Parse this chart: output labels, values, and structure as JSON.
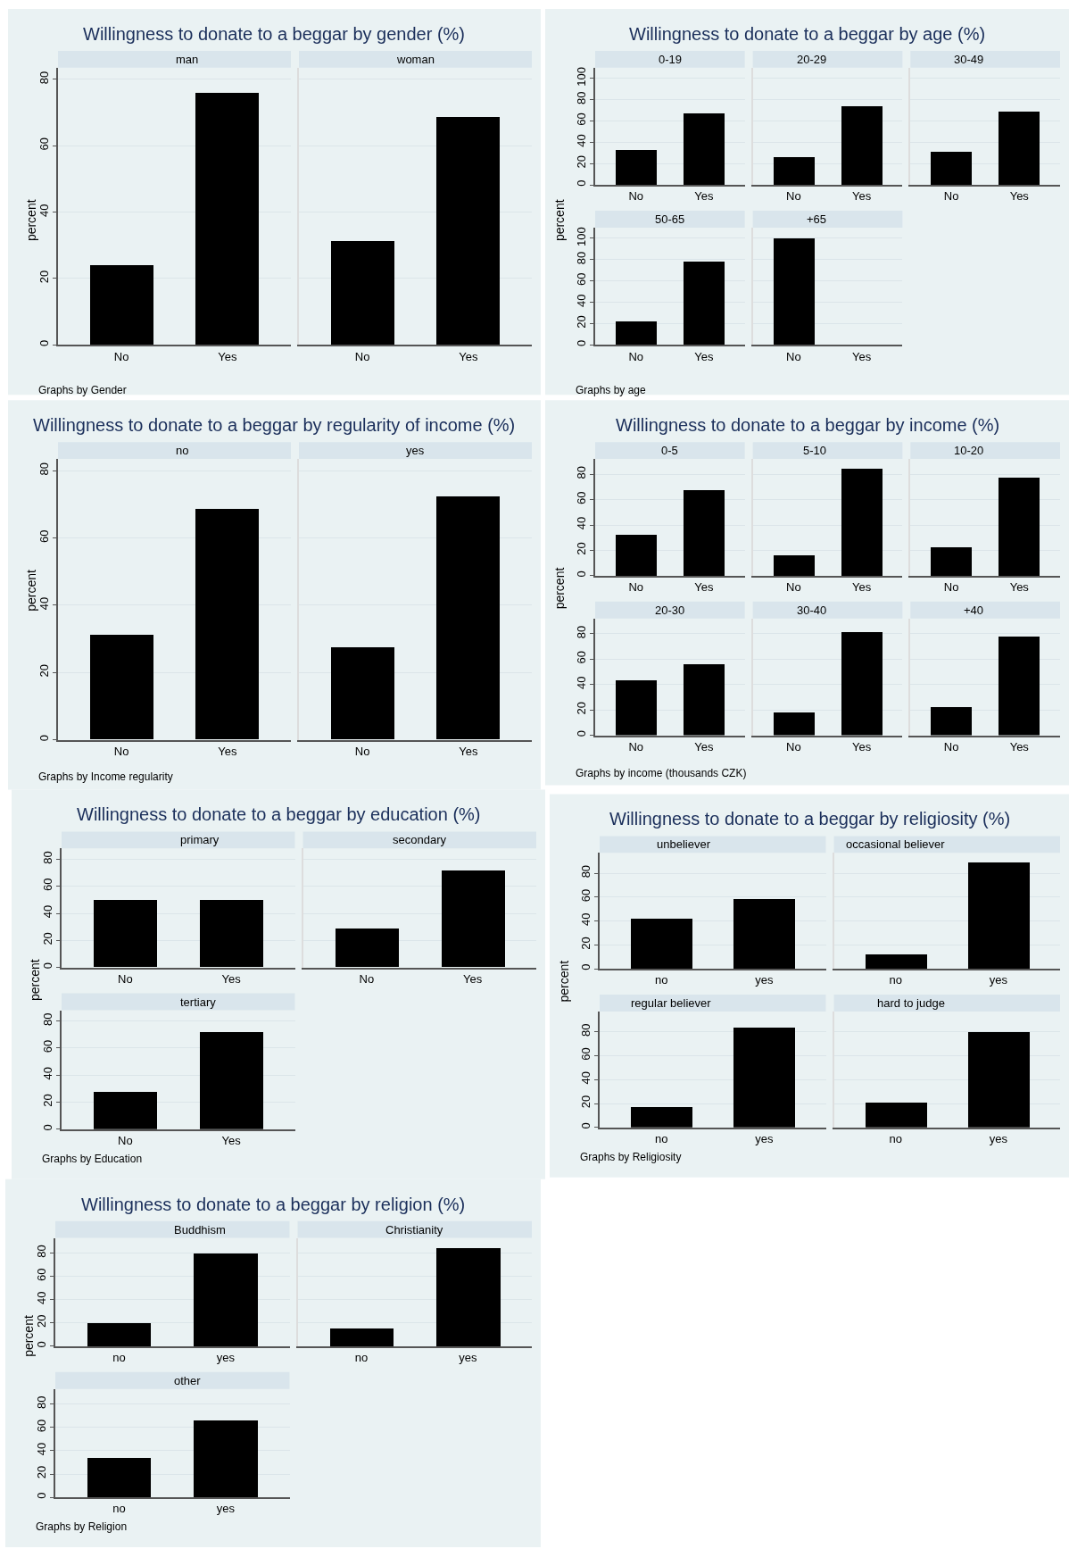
{
  "chart_data": [
    {
      "type": "bar",
      "title": "Willingness to donate to a beggar by gender (%)",
      "subtitle": "man",
      "ylabel": "percent",
      "annotations": [
        "Graphs by Gender"
      ],
      "categories": [
        "No",
        "Yes"
      ],
      "values": [
        24,
        76
      ],
      "color": "#000000",
      "ylim": [
        0,
        83.5
      ],
      "yticks": [
        0,
        20,
        40,
        60,
        80
      ],
      "grid": "y"
    },
    {
      "type": "bar",
      "subtitle": "woman",
      "categories": [
        "No",
        "Yes"
      ],
      "values": [
        31.3,
        68.7
      ],
      "color": "#000000",
      "ylim": [
        0,
        83.5
      ],
      "yticks": [
        0,
        20,
        40,
        60,
        80
      ],
      "grid": "y",
      "tick_labels": "x"
    },
    {
      "type": "bar",
      "title": "Willingness to donate to a beggar by age (%)",
      "subtitle": "0-19",
      "ylabel": "percent",
      "annotations": [
        "Graphs by age"
      ],
      "categories": [
        "No",
        "Yes"
      ],
      "values": [
        33,
        67
      ],
      "color": "#000000",
      "ylim": [
        0,
        110
      ],
      "yticks": [
        0,
        20,
        40,
        60,
        80,
        100
      ],
      "grid": "y"
    },
    {
      "type": "bar",
      "subtitle": "20-29",
      "categories": [
        "No",
        "Yes"
      ],
      "values": [
        26,
        74
      ],
      "color": "#000000",
      "ylim": [
        0,
        110
      ],
      "yticks": [
        0,
        20,
        40,
        60,
        80,
        100
      ],
      "grid": "y",
      "tick_labels": "x"
    },
    {
      "type": "bar",
      "subtitle": "30-49",
      "categories": [
        "No",
        "Yes"
      ],
      "values": [
        31,
        69
      ],
      "color": "#000000",
      "ylim": [
        0,
        110
      ],
      "yticks": [
        0,
        20,
        40,
        60,
        80,
        100
      ],
      "grid": "y",
      "tick_labels": "x"
    },
    {
      "type": "bar",
      "subtitle": "50-65",
      "categories": [
        "No",
        "Yes"
      ],
      "values": [
        22,
        78
      ],
      "color": "#000000",
      "ylim": [
        0,
        110
      ],
      "yticks": [
        0,
        20,
        40,
        60,
        80,
        100
      ],
      "grid": "y"
    },
    {
      "type": "bar",
      "subtitle": "+65",
      "categories": [
        "No",
        "Yes"
      ],
      "values": [
        100,
        0
      ],
      "color": "#000000",
      "ylim": [
        0,
        110
      ],
      "yticks": [
        0,
        20,
        40,
        60,
        80,
        100
      ],
      "grid": "y",
      "tick_labels": "x"
    },
    {
      "type": "bar",
      "title": "Willingness to donate to a beggar by regularity of income (%)",
      "subtitle": "no",
      "ylabel": "percent",
      "annotations": [
        "Graphs by Income regularity"
      ],
      "categories": [
        "No",
        "Yes"
      ],
      "values": [
        31.3,
        68.7
      ],
      "color": "#000000",
      "ylim": [
        0,
        83.5
      ],
      "yticks": [
        0,
        20,
        40,
        60,
        80
      ],
      "grid": "y"
    },
    {
      "type": "bar",
      "subtitle": "yes",
      "categories": [
        "No",
        "Yes"
      ],
      "values": [
        27.6,
        72.4
      ],
      "color": "#000000",
      "ylim": [
        0,
        83.5
      ],
      "yticks": [
        0,
        20,
        40,
        60,
        80
      ],
      "grid": "y",
      "tick_labels": "x"
    },
    {
      "type": "bar",
      "title": "Willingness to donate to a beggar by income (%)",
      "subtitle": "0-5",
      "ylabel": "percent",
      "annotations": [
        "Graphs by income (thousands CZK)"
      ],
      "categories": [
        "No",
        "Yes"
      ],
      "values": [
        32.3,
        67.7
      ],
      "color": "#000000",
      "ylim": [
        0,
        92
      ],
      "yticks": [
        0,
        20,
        40,
        60,
        80
      ],
      "grid": "y"
    },
    {
      "type": "bar",
      "subtitle": "5-10",
      "categories": [
        "No",
        "Yes"
      ],
      "values": [
        16,
        84
      ],
      "color": "#000000",
      "ylim": [
        0,
        92
      ],
      "yticks": [
        0,
        20,
        40,
        60,
        80
      ],
      "grid": "y",
      "tick_labels": "x"
    },
    {
      "type": "bar",
      "subtitle": "10-20",
      "categories": [
        "No",
        "Yes"
      ],
      "values": [
        22.6,
        77.4
      ],
      "color": "#000000",
      "ylim": [
        0,
        92
      ],
      "yticks": [
        0,
        20,
        40,
        60,
        80
      ],
      "grid": "y",
      "tick_labels": "x"
    },
    {
      "type": "bar",
      "subtitle": "20-30",
      "categories": [
        "No",
        "Yes"
      ],
      "values": [
        43.8,
        56.2
      ],
      "color": "#000000",
      "ylim": [
        0,
        92
      ],
      "yticks": [
        0,
        20,
        40,
        60,
        80
      ],
      "grid": "y"
    },
    {
      "type": "bar",
      "subtitle": "30-40",
      "categories": [
        "No",
        "Yes"
      ],
      "values": [
        18.2,
        81.8
      ],
      "color": "#000000",
      "ylim": [
        0,
        92
      ],
      "yticks": [
        0,
        20,
        40,
        60,
        80
      ],
      "grid": "y",
      "tick_labels": "x"
    },
    {
      "type": "bar",
      "subtitle": "+40",
      "categories": [
        "No",
        "Yes"
      ],
      "values": [
        22.4,
        77.6
      ],
      "color": "#000000",
      "ylim": [
        0,
        92
      ],
      "yticks": [
        0,
        20,
        40,
        60,
        80
      ],
      "grid": "y",
      "tick_labels": "x"
    },
    {
      "type": "bar",
      "title": "Willingness to donate to a beggar by education (%)",
      "subtitle": "primary",
      "ylabel": "percent",
      "annotations": [
        "Graphs by Education"
      ],
      "categories": [
        "No",
        "Yes"
      ],
      "values": [
        50,
        50
      ],
      "color": "#000000",
      "ylim": [
        0,
        88
      ],
      "yticks": [
        0,
        20,
        40,
        60,
        80
      ],
      "grid": "y"
    },
    {
      "type": "bar",
      "subtitle": "secondary",
      "categories": [
        "No",
        "Yes"
      ],
      "values": [
        28.8,
        71.2
      ],
      "color": "#000000",
      "ylim": [
        0,
        88
      ],
      "yticks": [
        0,
        20,
        40,
        60,
        80
      ],
      "grid": "y",
      "tick_labels": "x"
    },
    {
      "type": "bar",
      "subtitle": "tertiary",
      "categories": [
        "No",
        "Yes"
      ],
      "values": [
        27.8,
        72.2
      ],
      "color": "#000000",
      "ylim": [
        0,
        88
      ],
      "yticks": [
        0,
        20,
        40,
        60,
        80
      ],
      "grid": "y"
    },
    {
      "type": "bar",
      "title": "Willingness to donate to a beggar by religiosity (%)",
      "subtitle": "unbeliever",
      "ylabel": "percent",
      "annotations": [
        "Graphs by Religiosity"
      ],
      "categories": [
        "no",
        "yes"
      ],
      "values": [
        42,
        58
      ],
      "color": "#000000",
      "ylim": [
        0,
        97
      ],
      "yticks": [
        0,
        20,
        40,
        60,
        80
      ],
      "grid": "y"
    },
    {
      "type": "bar",
      "subtitle": "occasional believer",
      "categories": [
        "no",
        "yes"
      ],
      "values": [
        11.5,
        88.5
      ],
      "color": "#000000",
      "ylim": [
        0,
        97
      ],
      "yticks": [
        0,
        20,
        40,
        60,
        80
      ],
      "grid": "y",
      "tick_labels": "x"
    },
    {
      "type": "bar",
      "subtitle": "regular believer",
      "categories": [
        "no",
        "yes"
      ],
      "values": [
        17,
        83.5
      ],
      "color": "#000000",
      "ylim": [
        0,
        97
      ],
      "yticks": [
        0,
        20,
        40,
        60,
        80
      ],
      "grid": "y"
    },
    {
      "type": "bar",
      "subtitle": "hard to judge",
      "categories": [
        "no",
        "yes"
      ],
      "values": [
        21,
        80
      ],
      "color": "#000000",
      "ylim": [
        0,
        97
      ],
      "yticks": [
        0,
        20,
        40,
        60,
        80
      ],
      "grid": "y",
      "tick_labels": "x"
    },
    {
      "type": "bar",
      "title": "Willingness to donate to a beggar by religion (%)",
      "subtitle": "Buddhism",
      "ylabel": "percent",
      "annotations": [
        "Graphs by Religion"
      ],
      "categories": [
        "no",
        "yes"
      ],
      "values": [
        20,
        80
      ],
      "color": "#000000",
      "ylim": [
        0,
        93
      ],
      "yticks": [
        0,
        20,
        40,
        60,
        80
      ],
      "grid": "y"
    },
    {
      "type": "bar",
      "subtitle": "Christianity",
      "categories": [
        "no",
        "yes"
      ],
      "values": [
        15.2,
        84.8
      ],
      "color": "#000000",
      "ylim": [
        0,
        93
      ],
      "yticks": [
        0,
        20,
        40,
        60,
        80
      ],
      "grid": "y",
      "tick_labels": "x"
    },
    {
      "type": "bar",
      "subtitle": "other",
      "categories": [
        "no",
        "yes"
      ],
      "values": [
        33.8,
        66.2
      ],
      "color": "#000000",
      "ylim": [
        0,
        93
      ],
      "yticks": [
        0,
        20,
        40,
        60,
        80
      ],
      "grid": "y"
    }
  ]
}
